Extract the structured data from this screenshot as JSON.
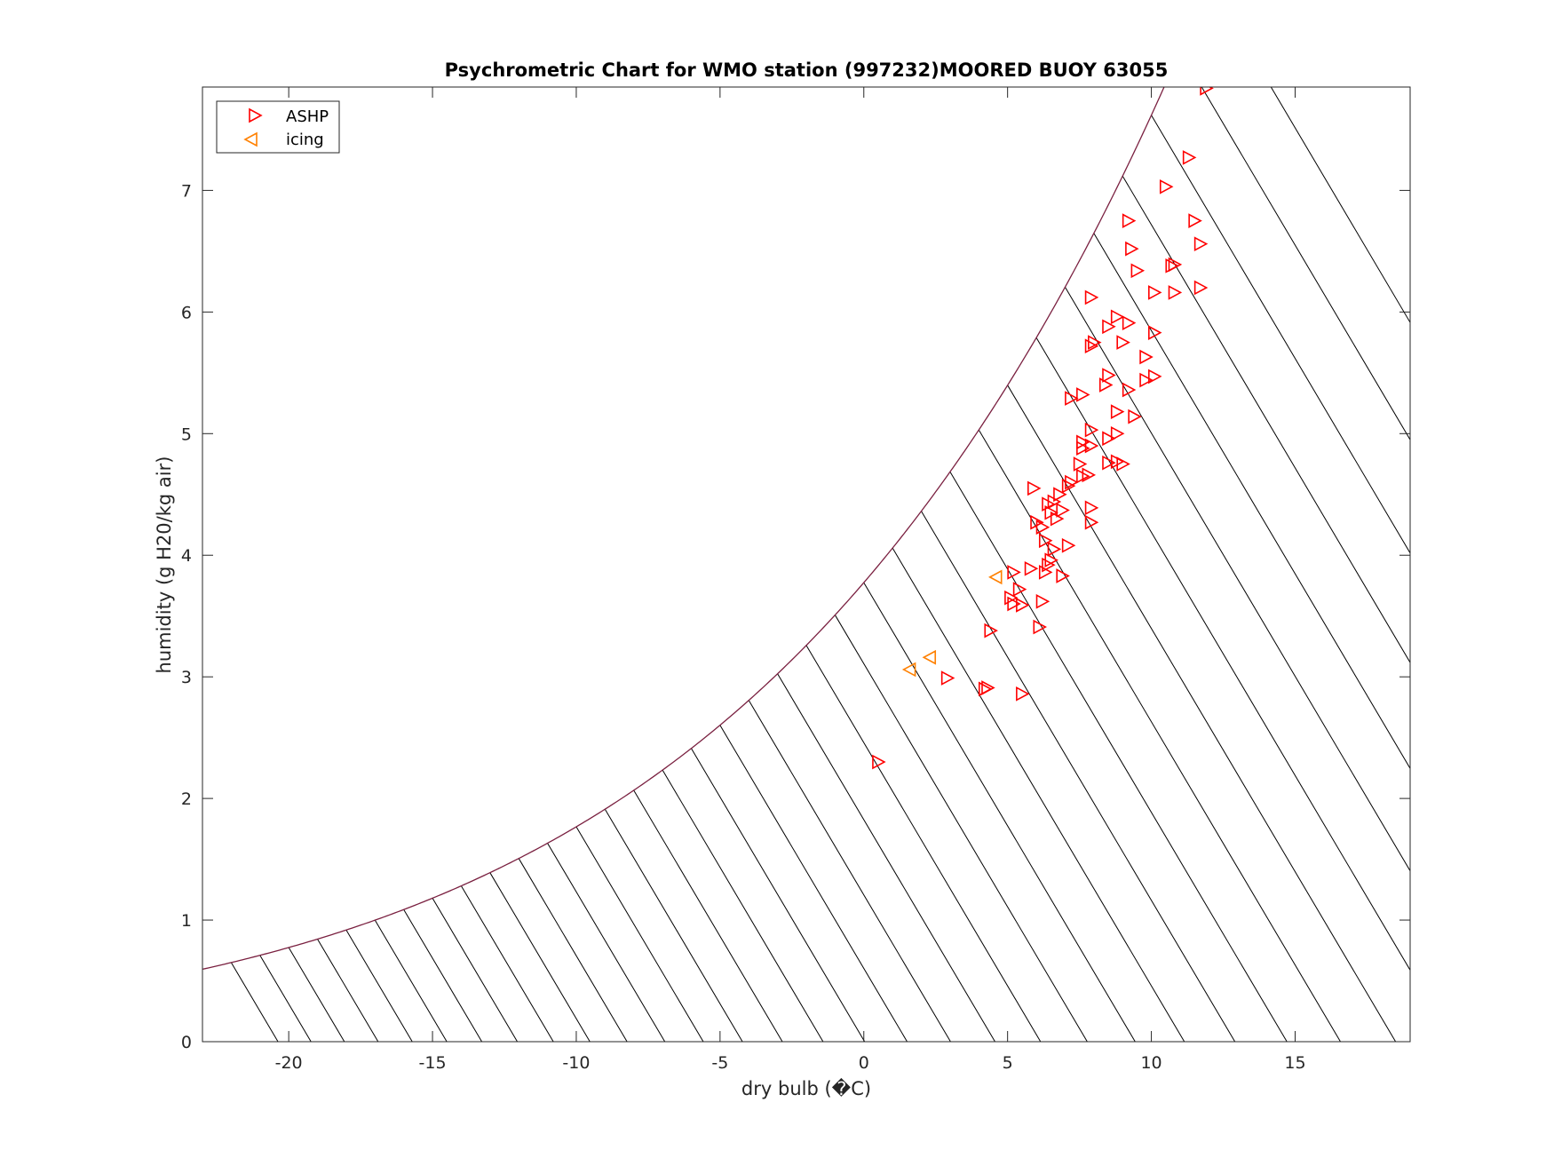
{
  "chart_data": {
    "type": "scatter",
    "title": "Psychrometric Chart for WMO station (997232)MOORED BUOY 63055",
    "xlabel": "dry bulb (�C)",
    "ylabel": "humidity (g H20/kg air)",
    "xlim": [
      -23,
      19
    ],
    "ylim": [
      0,
      7.85
    ],
    "xticks": [
      -20,
      -15,
      -10,
      -5,
      0,
      5,
      10,
      15
    ],
    "yticks": [
      0,
      1,
      2,
      3,
      4,
      5,
      6,
      7
    ],
    "xtick_labels": [
      "-20",
      "-15",
      "-10",
      "-5",
      "0",
      "5",
      "10",
      "15"
    ],
    "ytick_labels": [
      "0",
      "1",
      "2",
      "3",
      "4",
      "5",
      "6",
      "7"
    ],
    "grid": false,
    "legend_position": "top-left",
    "saturation_curve_color": "#7a2040",
    "hatch_line_color": "#000000",
    "series": [
      {
        "name": "ASHP",
        "marker": "triangle-right",
        "color": "#ff0000",
        "points": [
          [
            0.5,
            2.3
          ],
          [
            2.9,
            2.99
          ],
          [
            4.2,
            2.9
          ],
          [
            4.3,
            2.91
          ],
          [
            5.5,
            2.86
          ],
          [
            4.4,
            3.38
          ],
          [
            6.1,
            3.41
          ],
          [
            5.1,
            3.65
          ],
          [
            5.2,
            3.6
          ],
          [
            5.5,
            3.59
          ],
          [
            5.4,
            3.72
          ],
          [
            6.2,
            3.62
          ],
          [
            5.2,
            3.86
          ],
          [
            5.8,
            3.89
          ],
          [
            6.3,
            3.86
          ],
          [
            6.9,
            3.83
          ],
          [
            6.4,
            3.92
          ],
          [
            6.5,
            3.96
          ],
          [
            6.0,
            4.27
          ],
          [
            6.3,
            4.12
          ],
          [
            6.6,
            4.05
          ],
          [
            7.1,
            4.08
          ],
          [
            6.2,
            4.23
          ],
          [
            6.7,
            4.3
          ],
          [
            6.5,
            4.35
          ],
          [
            6.9,
            4.37
          ],
          [
            6.4,
            4.42
          ],
          [
            6.6,
            4.44
          ],
          [
            5.9,
            4.55
          ],
          [
            6.8,
            4.5
          ],
          [
            7.1,
            4.57
          ],
          [
            7.2,
            4.6
          ],
          [
            7.6,
            4.65
          ],
          [
            7.8,
            4.66
          ],
          [
            7.5,
            4.75
          ],
          [
            7.9,
            4.27
          ],
          [
            7.9,
            4.39
          ],
          [
            7.6,
            4.88
          ],
          [
            7.6,
            4.93
          ],
          [
            7.9,
            4.9
          ],
          [
            8.5,
            4.76
          ],
          [
            8.8,
            4.77
          ],
          [
            9.0,
            4.75
          ],
          [
            8.5,
            4.96
          ],
          [
            8.8,
            5.0
          ],
          [
            7.9,
            5.03
          ],
          [
            8.8,
            5.18
          ],
          [
            9.4,
            5.14
          ],
          [
            7.2,
            5.29
          ],
          [
            7.6,
            5.32
          ],
          [
            8.4,
            5.4
          ],
          [
            8.5,
            5.48
          ],
          [
            9.2,
            5.36
          ],
          [
            9.8,
            5.44
          ],
          [
            10.1,
            5.47
          ],
          [
            9.8,
            5.63
          ],
          [
            7.9,
            5.72
          ],
          [
            8.0,
            5.75
          ],
          [
            9.0,
            5.75
          ],
          [
            8.5,
            5.88
          ],
          [
            8.8,
            5.96
          ],
          [
            9.2,
            5.91
          ],
          [
            10.1,
            5.83
          ],
          [
            7.9,
            6.12
          ],
          [
            10.1,
            6.16
          ],
          [
            10.8,
            6.16
          ],
          [
            11.7,
            6.2
          ],
          [
            9.5,
            6.34
          ],
          [
            10.7,
            6.38
          ],
          [
            10.8,
            6.39
          ],
          [
            9.3,
            6.52
          ],
          [
            11.7,
            6.56
          ],
          [
            9.2,
            6.75
          ],
          [
            11.5,
            6.75
          ],
          [
            10.5,
            7.03
          ],
          [
            11.3,
            7.27
          ],
          [
            11.9,
            7.84
          ]
        ]
      },
      {
        "name": "icing",
        "marker": "triangle-left",
        "color": "#ff8000",
        "points": [
          [
            1.6,
            3.06
          ],
          [
            2.3,
            3.16
          ],
          [
            4.6,
            3.82
          ]
        ]
      }
    ]
  }
}
